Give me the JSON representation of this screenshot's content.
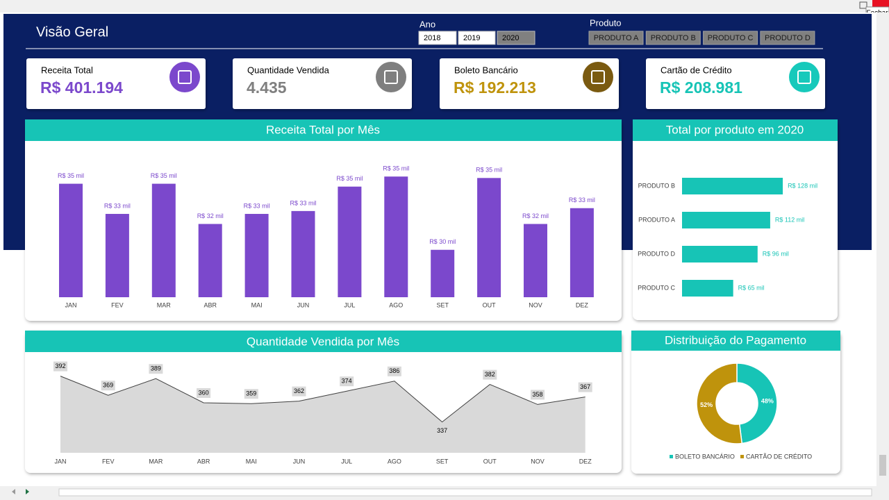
{
  "window": {
    "tooltip": "Fechar"
  },
  "header": {
    "title": "Visão Geral",
    "year_label": "Ano",
    "years": [
      "2018",
      "2019",
      "2020"
    ],
    "product_label": "Produto",
    "products": [
      "PRODUTO A",
      "PRODUTO B",
      "PRODUTO C",
      "PRODUTO D"
    ]
  },
  "kpis": [
    {
      "label": "Receita Total",
      "value": "R$ 401.194",
      "color": "#7b48cc"
    },
    {
      "label": "Quantidade Vendida",
      "value": "4.435",
      "color": "#7f7f7f"
    },
    {
      "label": "Boleto Bancário",
      "value": "R$ 192.213",
      "color": "#bf930c"
    },
    {
      "label": "Cartão de Crédito",
      "value": "R$ 208.981",
      "color": "#17c4b6"
    }
  ],
  "chart_data": [
    {
      "type": "bar",
      "title": "Receita Total por Mês",
      "categories": [
        "JAN",
        "FEV",
        "MAR",
        "ABR",
        "MAI",
        "JUN",
        "JUL",
        "AGO",
        "SET",
        "OUT",
        "NOV",
        "DEZ"
      ],
      "values": [
        34.7,
        32.6,
        34.7,
        31.9,
        32.6,
        32.8,
        34.5,
        35.2,
        30.1,
        35.1,
        31.9,
        33.0
      ],
      "value_labels": [
        "R$ 35 mil",
        "R$ 33 mil",
        "R$ 35 mil",
        "R$ 32 mil",
        "R$ 33 mil",
        "R$ 33 mil",
        "R$ 35 mil",
        "R$ 35 mil",
        "R$ 30 mil",
        "R$ 35 mil",
        "R$ 32 mil",
        "R$ 33 mil"
      ],
      "color": "#7b48cc",
      "ylim": [
        26.8,
        37
      ]
    },
    {
      "type": "hbar",
      "title": "Total por produto em 2020",
      "categories": [
        "PRODUTO B",
        "PRODUTO A",
        "PRODUTO D",
        "PRODUTO C"
      ],
      "values": [
        128,
        112,
        96,
        65
      ],
      "value_labels": [
        "R$ 128 mil",
        "R$ 112 mil",
        "R$ 96 mil",
        "R$ 65 mil"
      ],
      "color": "#17c4b6",
      "xlim": [
        0,
        150
      ]
    },
    {
      "type": "area",
      "title": "Quantidade Vendida por Mês",
      "categories": [
        "JAN",
        "FEV",
        "MAR",
        "ABR",
        "MAI",
        "JUN",
        "JUL",
        "AGO",
        "SET",
        "OUT",
        "NOV",
        "DEZ"
      ],
      "values": [
        392,
        369,
        389,
        360,
        359,
        362,
        374,
        386,
        337,
        382,
        358,
        367
      ],
      "color": "#d9d9d9",
      "line_color": "#404040",
      "ylim": [
        300,
        400
      ]
    },
    {
      "type": "donut",
      "title": "Distribuição do Pagamento",
      "categories": [
        "BOLETO BANCÁRIO",
        "CARTÃO DE CRÉDITO"
      ],
      "values": [
        48,
        52
      ],
      "value_labels": [
        "48%",
        "52%"
      ],
      "colors": [
        "#17c4b6",
        "#bf930c"
      ]
    }
  ]
}
